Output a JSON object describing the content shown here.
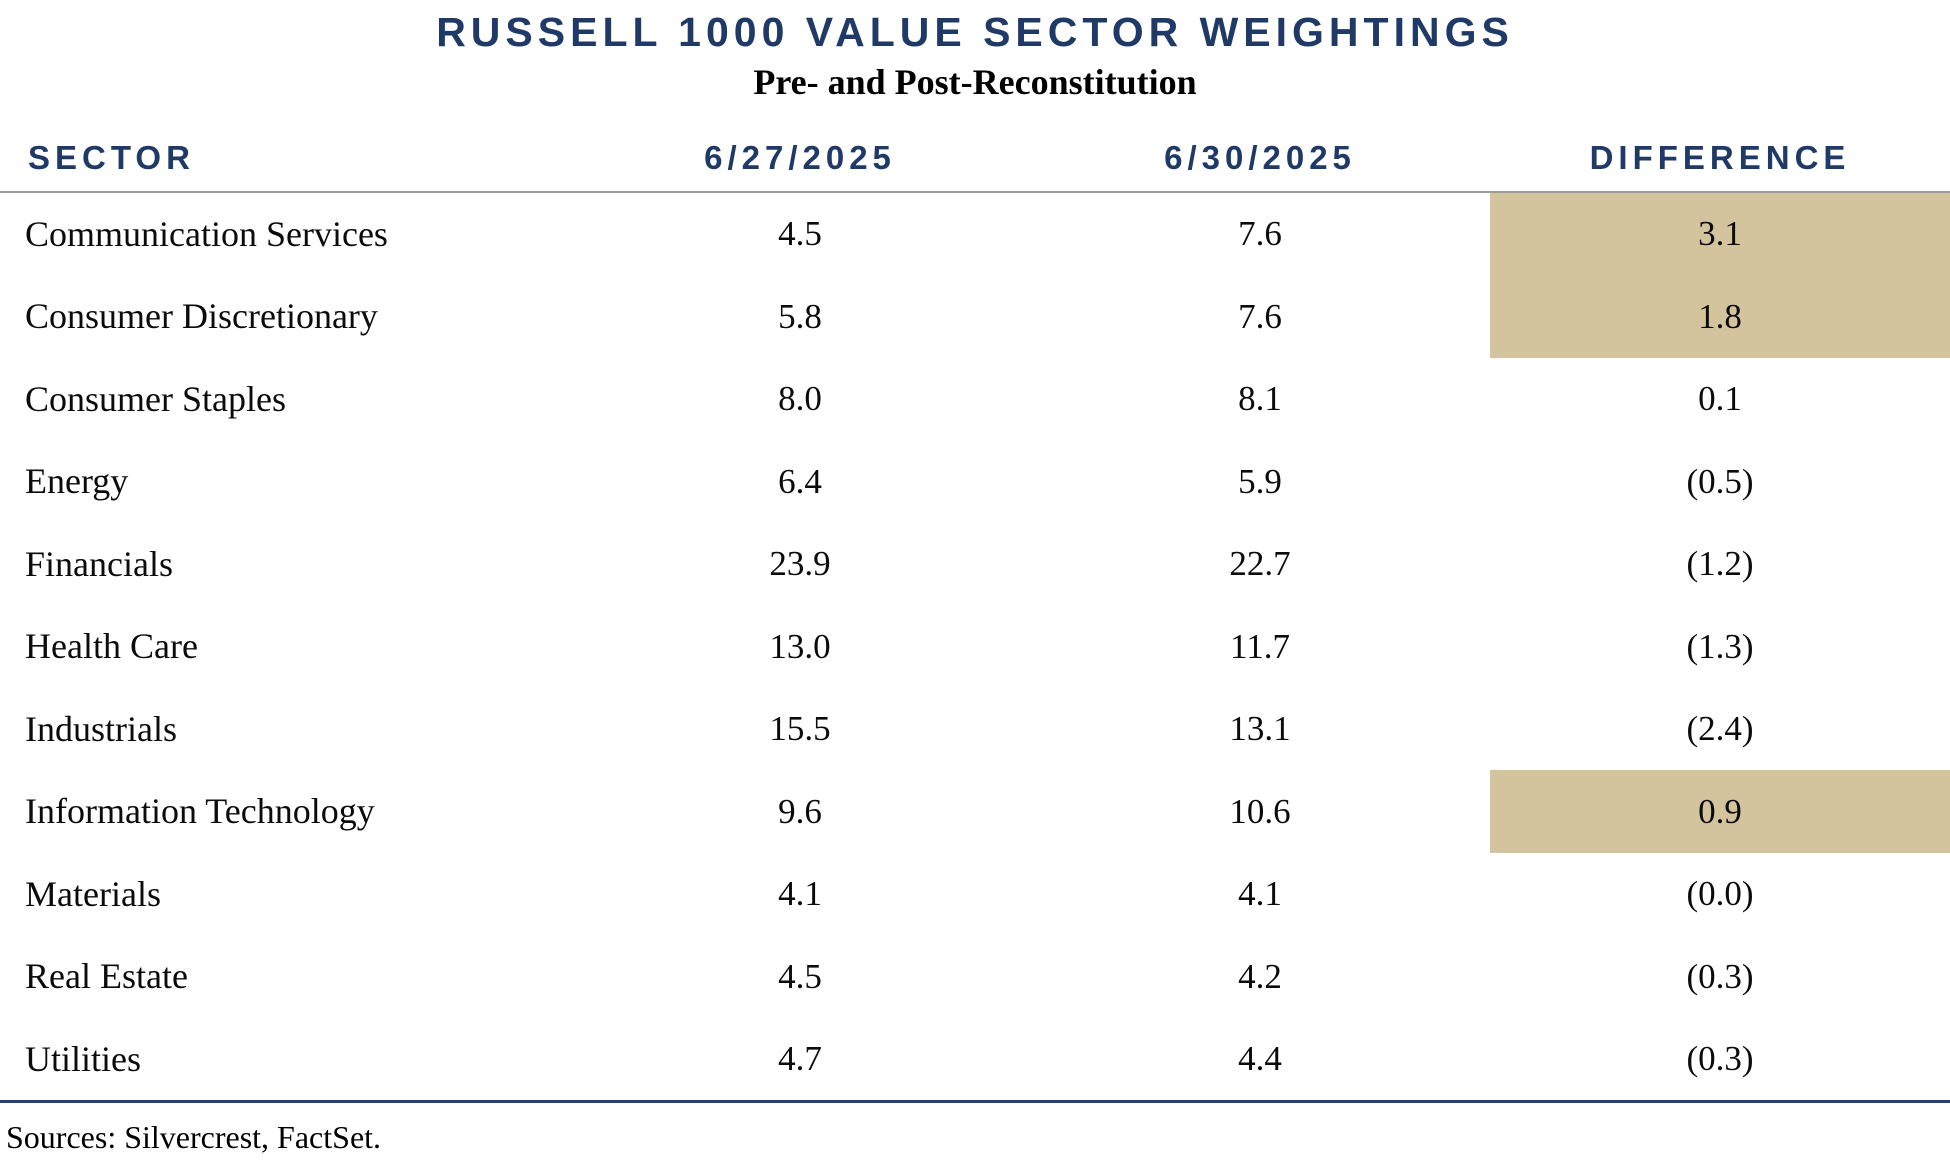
{
  "title": "RUSSELL 1000 VALUE SECTOR WEIGHTINGS",
  "subtitle": "Pre- and Post-Reconstitution",
  "colors": {
    "navy": "#203a68",
    "highlight_tan": "#d4c49d",
    "header_rule_gray": "#9b9b9b",
    "bottom_rule_navy": "#24406e"
  },
  "table": {
    "columns": [
      "SECTOR",
      "6/27/2025",
      "6/30/2025",
      "DIFFERENCE"
    ],
    "rows": [
      {
        "sector": "Communication Services",
        "pre": "4.5",
        "post": "7.6",
        "diff": "3.1",
        "highlight": true
      },
      {
        "sector": "Consumer Discretionary",
        "pre": "5.8",
        "post": "7.6",
        "diff": "1.8",
        "highlight": true
      },
      {
        "sector": "Consumer Staples",
        "pre": "8.0",
        "post": "8.1",
        "diff": "0.1",
        "highlight": false
      },
      {
        "sector": "Energy",
        "pre": "6.4",
        "post": "5.9",
        "diff": "(0.5)",
        "highlight": false
      },
      {
        "sector": "Financials",
        "pre": "23.9",
        "post": "22.7",
        "diff": "(1.2)",
        "highlight": false
      },
      {
        "sector": "Health Care",
        "pre": "13.0",
        "post": "11.7",
        "diff": "(1.3)",
        "highlight": false
      },
      {
        "sector": "Industrials",
        "pre": "15.5",
        "post": "13.1",
        "diff": "(2.4)",
        "highlight": false
      },
      {
        "sector": "Information Technology",
        "pre": "9.6",
        "post": "10.6",
        "diff": "0.9",
        "highlight": true
      },
      {
        "sector": "Materials",
        "pre": "4.1",
        "post": "4.1",
        "diff": "(0.0)",
        "highlight": false
      },
      {
        "sector": "Real Estate",
        "pre": "4.5",
        "post": "4.2",
        "diff": "(0.3)",
        "highlight": false
      },
      {
        "sector": "Utilities",
        "pre": "4.7",
        "post": "4.4",
        "diff": "(0.3)",
        "highlight": false
      }
    ]
  },
  "sources": "Sources: Silvercrest, FactSet.",
  "chart_data": {
    "type": "table",
    "title": "RUSSELL 1000 VALUE SECTOR WEIGHTINGS",
    "subtitle": "Pre- and Post-Reconstitution",
    "columns": [
      "SECTOR",
      "6/27/2025",
      "6/30/2025",
      "DIFFERENCE"
    ],
    "rows": [
      [
        "Communication Services",
        4.5,
        7.6,
        3.1
      ],
      [
        "Consumer Discretionary",
        5.8,
        7.6,
        1.8
      ],
      [
        "Consumer Staples",
        8.0,
        8.1,
        0.1
      ],
      [
        "Energy",
        6.4,
        5.9,
        -0.5
      ],
      [
        "Financials",
        23.9,
        22.7,
        -1.2
      ],
      [
        "Health Care",
        13.0,
        11.7,
        -1.3
      ],
      [
        "Industrials",
        15.5,
        13.1,
        -2.4
      ],
      [
        "Information Technology",
        9.6,
        10.6,
        0.9
      ],
      [
        "Materials",
        4.1,
        4.1,
        0.0
      ],
      [
        "Real Estate",
        4.5,
        4.2,
        -0.3
      ],
      [
        "Utilities",
        4.7,
        4.4,
        -0.3
      ]
    ],
    "highlighted_rows": [
      "Communication Services",
      "Consumer Discretionary",
      "Information Technology"
    ],
    "highlight_color": "#d4c49d",
    "negative_format": "parentheses",
    "notes": "Sources: Silvercrest, FactSet."
  }
}
